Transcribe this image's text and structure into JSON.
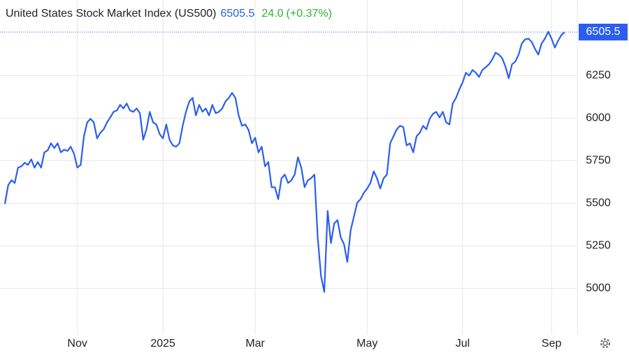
{
  "chart_data": {
    "type": "line",
    "title": "United States Stock Market Index (US500)",
    "last_price": "6505.5",
    "change": "24.0",
    "change_pct": "(+0.37%)",
    "change_color": "#2db52d",
    "color": "#2b5ef0",
    "grid": true,
    "ylim": [
      4735,
      6530
    ],
    "yticks": [
      5000,
      5250,
      5500,
      5750,
      6000,
      6250
    ],
    "xticks": [
      {
        "value": 22,
        "label": "Nov"
      },
      {
        "value": 48,
        "label": "2025"
      },
      {
        "value": 76,
        "label": "Mar"
      },
      {
        "value": 110,
        "label": "May"
      },
      {
        "value": 139,
        "label": "Jul"
      },
      {
        "value": 166,
        "label": "Sep"
      }
    ],
    "values": [
      5496,
      5606,
      5635,
      5619,
      5709,
      5717,
      5738,
      5725,
      5758,
      5709,
      5742,
      5709,
      5799,
      5811,
      5852,
      5824,
      5852,
      5799,
      5815,
      5807,
      5832,
      5791,
      5709,
      5725,
      5893,
      5975,
      5996,
      5975,
      5881,
      5914,
      5934,
      5975,
      6004,
      6037,
      6045,
      6078,
      6057,
      6086,
      6045,
      6037,
      6057,
      6029,
      5873,
      5934,
      6037,
      5975,
      5963,
      5906,
      5881,
      5963,
      5873,
      5840,
      5832,
      5852,
      5955,
      6037,
      6098,
      6119,
      6016,
      6078,
      6037,
      6057,
      6016,
      6078,
      6029,
      6037,
      6057,
      6098,
      6119,
      6148,
      6119,
      6016,
      5955,
      5963,
      5930,
      5852,
      5885,
      5799,
      5832,
      5717,
      5742,
      5594,
      5594,
      5524,
      5647,
      5668,
      5619,
      5635,
      5668,
      5770,
      5709,
      5594,
      5635,
      5647,
      5668,
      5299,
      5073,
      4979,
      5455,
      5266,
      5381,
      5401,
      5299,
      5258,
      5155,
      5340,
      5422,
      5504,
      5524,
      5561,
      5586,
      5619,
      5688,
      5647,
      5586,
      5647,
      5668,
      5852,
      5893,
      5934,
      5955,
      5947,
      5840,
      5852,
      5799,
      5893,
      5914,
      5955,
      5934,
      5996,
      6025,
      6037,
      6004,
      6037,
      5975,
      5963,
      6086,
      6119,
      6168,
      6209,
      6267,
      6250,
      6283,
      6267,
      6242,
      6283,
      6299,
      6316,
      6344,
      6385,
      6373,
      6353,
      6303,
      6234,
      6316,
      6332,
      6373,
      6439,
      6463,
      6467,
      6447,
      6406,
      6373,
      6439,
      6467,
      6508,
      6467,
      6414,
      6455,
      6488,
      6505.5
    ]
  }
}
